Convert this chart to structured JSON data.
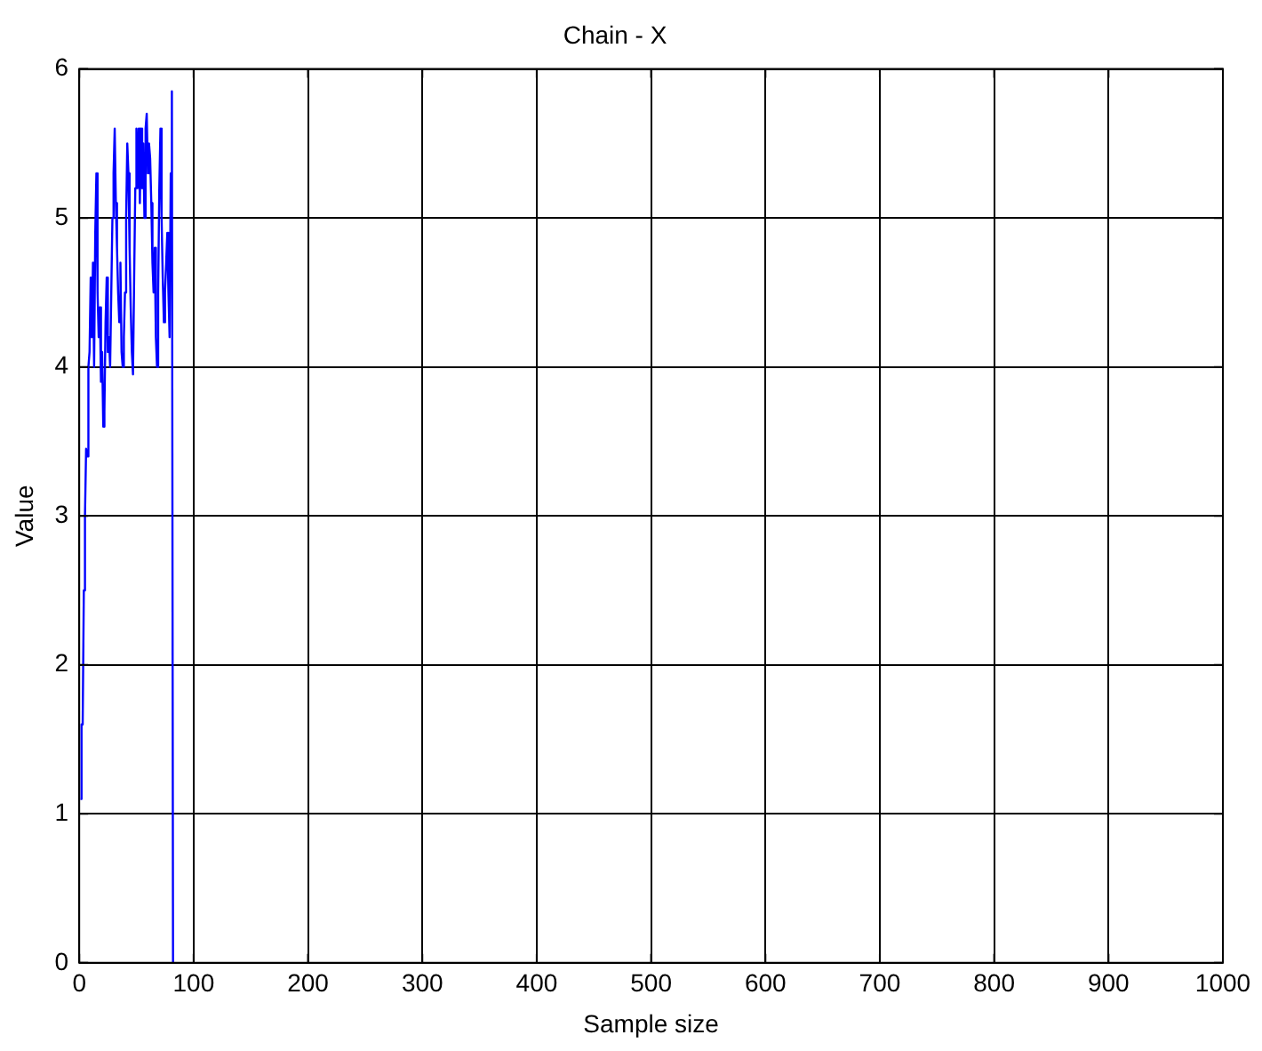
{
  "chart_data": {
    "type": "line",
    "title": "Chain - X",
    "xlabel": "Sample size",
    "ylabel": "Value",
    "x": [
      1,
      2,
      3,
      4,
      5,
      6,
      7,
      8,
      9,
      10,
      11,
      12,
      13,
      14,
      15,
      16,
      17,
      18,
      19,
      20,
      21,
      22,
      23,
      24,
      25,
      26,
      27,
      28,
      29,
      30,
      31,
      32,
      33,
      34,
      35,
      36,
      37,
      38,
      39,
      40,
      41,
      42,
      43,
      44,
      45,
      46,
      47,
      48,
      49,
      50,
      51,
      52,
      53,
      54,
      55,
      56,
      57,
      58,
      59,
      60,
      61,
      62,
      63,
      64,
      65,
      66,
      67,
      68,
      69,
      70,
      71,
      72,
      73,
      74,
      75,
      76,
      77,
      78,
      79,
      80,
      81,
      82
    ],
    "series": [
      {
        "color": "#0000ff",
        "values": [
          1.1,
          1.6,
          1.6,
          2.5,
          3.0,
          3.45,
          3.4,
          4.0,
          4.1,
          4.6,
          4.2,
          4.7,
          4.0,
          4.9,
          5.3,
          4.5,
          4.2,
          4.4,
          3.9,
          4.1,
          3.6,
          3.7,
          4.3,
          4.6,
          4.1,
          4.2,
          4.0,
          4.5,
          5.0,
          5.3,
          5.6,
          5.1,
          4.8,
          4.5,
          4.3,
          4.7,
          4.1,
          4.0,
          4.2,
          4.5,
          5.0,
          5.5,
          5.3,
          4.8,
          4.4,
          4.1,
          3.95,
          4.6,
          5.2,
          5.6,
          5.2,
          5.6,
          5.1,
          5.6,
          5.2,
          5.5,
          5.0,
          5.6,
          5.7,
          5.3,
          5.5,
          5.4,
          5.1,
          4.7,
          4.5,
          4.8,
          4.2,
          4.0,
          4.5,
          5.2,
          5.6,
          5.0,
          4.6,
          4.3,
          4.5,
          4.7,
          4.9,
          4.5,
          4.2,
          5.3,
          5.85,
          0
        ]
      }
    ],
    "xlim": [
      0,
      1000
    ],
    "xticks": [
      0,
      100,
      200,
      300,
      400,
      500,
      600,
      700,
      800,
      900,
      1000
    ],
    "ylim": [
      0,
      6
    ],
    "yticks": [
      0,
      1,
      2,
      3,
      4,
      5,
      6
    ],
    "grid": true,
    "legend": false,
    "marker": "none",
    "line_style": "solid"
  }
}
